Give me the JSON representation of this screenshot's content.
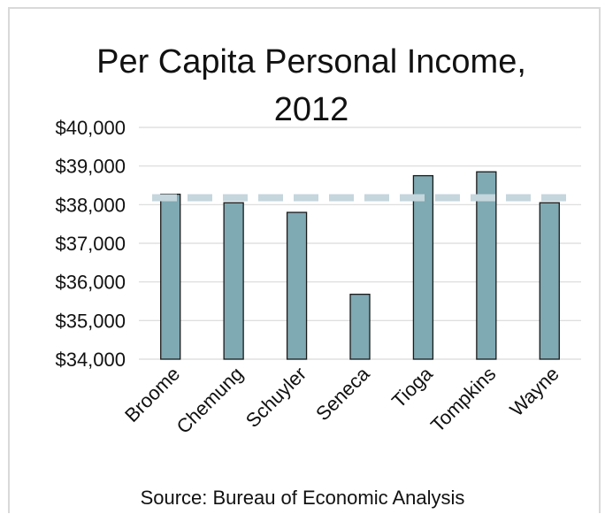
{
  "chart_data": {
    "type": "bar",
    "title_line1": "Per Capita Personal Income,",
    "title_line2": "2012",
    "source": "Source: Bureau of Economic Analysis",
    "categories": [
      "Broome",
      "Chemung",
      "Schuyler",
      "Seneca",
      "Tioga",
      "Tompkins",
      "Wayne"
    ],
    "values": [
      38270,
      38050,
      37800,
      35680,
      38750,
      38850,
      38050
    ],
    "reference_line": 38180,
    "ylim": [
      34000,
      40000
    ],
    "y_ticks": [
      34000,
      35000,
      36000,
      37000,
      38000,
      39000,
      40000
    ],
    "y_tick_labels": [
      "$34,000",
      "$35,000",
      "$36,000",
      "$37,000",
      "$38,000",
      "$39,000",
      "$40,000"
    ],
    "grid": true,
    "colors": {
      "bar": "#7fa9b3",
      "bar_edge": "#1a1a1a",
      "reference_line": "#c5d6dc",
      "grid": "#d9d9d9"
    }
  }
}
